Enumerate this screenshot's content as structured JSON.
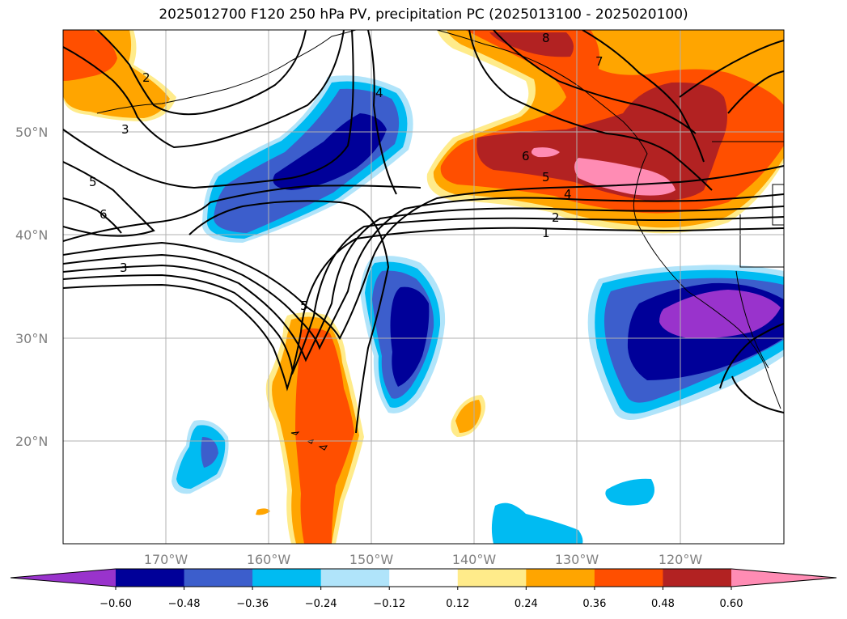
{
  "title": "2025012700 F120 250 hPa PV, precipitation PC (2025013100 - 2025020100)",
  "map": {
    "lat_labels": [
      "50°N",
      "40°N",
      "30°N",
      "20°N"
    ],
    "lon_labels": [
      "170°W",
      "160°W",
      "150°W",
      "140°W",
      "130°W",
      "120°W"
    ],
    "extent": {
      "lon_min": 180,
      "lon_max": 110,
      "lat_min": 10,
      "lat_max": 60
    },
    "gridlines": true
  },
  "contour_labels": [
    "2",
    "3",
    "4",
    "5",
    "6",
    "3",
    "5",
    "8",
    "7",
    "6",
    "5",
    "4",
    "2",
    "1",
    "5"
  ],
  "colorbar": {
    "ticks": [
      "−0.60",
      "−0.48",
      "−0.36",
      "−0.24",
      "−0.12",
      "0.12",
      "0.24",
      "0.36",
      "0.48",
      "0.60"
    ],
    "colors": [
      "#9933cc",
      "#000099",
      "#3c5ecc",
      "#00bbf2",
      "#b0e4fa",
      "#ffffff",
      "#ffeb8a",
      "#ffa500",
      "#ff4f00",
      "#b22222",
      "#ff8cb4"
    ]
  }
}
